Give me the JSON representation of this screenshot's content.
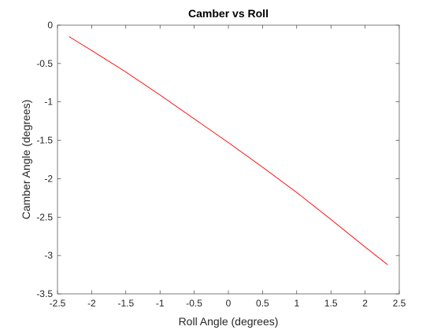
{
  "chart_data": {
    "type": "line",
    "title": "Camber vs Roll",
    "xlabel": "Roll Angle (degrees)",
    "ylabel": "Camber Angle (degrees)",
    "xlim": [
      -2.5,
      2.5
    ],
    "ylim": [
      -3.5,
      0
    ],
    "xticks": [
      -2.5,
      -2,
      -1.5,
      -1,
      -0.5,
      0,
      0.5,
      1,
      1.5,
      2,
      2.5
    ],
    "xtick_labels": [
      "-2.5",
      "-2",
      "-1.5",
      "-1",
      "-0.5",
      "0",
      "0.5",
      "1",
      "1.5",
      "2",
      "2.5"
    ],
    "yticks": [
      0,
      -0.5,
      -1,
      -1.5,
      -2,
      -2.5,
      -3,
      -3.5
    ],
    "ytick_labels": [
      "0",
      "-0.5",
      "-1",
      "-1.5",
      "-2",
      "-2.5",
      "-3",
      "-3.5"
    ],
    "grid": false,
    "box": true,
    "series": [
      {
        "color": "#ff0000",
        "x": [
          -2.33,
          -2.0,
          -1.5,
          -1.0,
          -0.5,
          0.0,
          0.5,
          1.0,
          1.5,
          2.0,
          2.33
        ],
        "y": [
          -0.15,
          -0.33,
          -0.61,
          -0.91,
          -1.22,
          -1.53,
          -1.85,
          -2.18,
          -2.53,
          -2.89,
          -3.12
        ]
      }
    ]
  }
}
